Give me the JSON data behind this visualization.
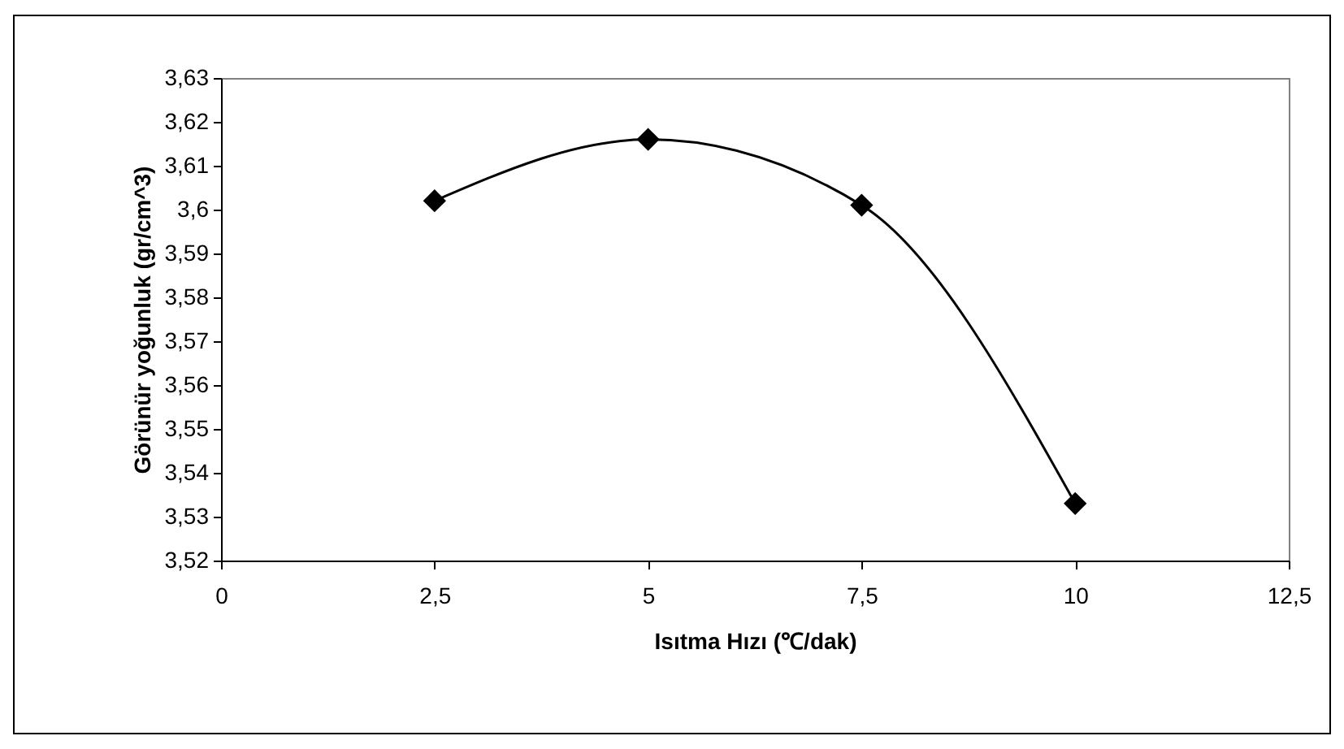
{
  "chart_data": {
    "type": "line",
    "xlabel": "Isıtma Hızı (℃/dak)",
    "ylabel": "Görünür yoğunluk (gr/cm^3)",
    "x": [
      2.5,
      5,
      7.5,
      10
    ],
    "series": [
      {
        "color": "#000000",
        "values": [
          3.602,
          3.616,
          3.601,
          3.533
        ]
      }
    ],
    "xlim": [
      0,
      12.5
    ],
    "xticks": [
      0,
      {
        "value": 2.5,
        "label": "2,5"
      },
      5,
      {
        "value": 7.5,
        "label": "7,5"
      },
      10,
      {
        "value": 12.5,
        "label": "12,5"
      }
    ],
    "ylim": [
      3.52,
      3.63
    ],
    "yticks": [
      {
        "value": 3.52,
        "label": "3,52"
      },
      {
        "value": 3.53,
        "label": "3,53"
      },
      {
        "value": 3.54,
        "label": "3,54"
      },
      {
        "value": 3.55,
        "label": "3,55"
      },
      {
        "value": 3.56,
        "label": "3,56"
      },
      {
        "value": 3.57,
        "label": "3,57"
      },
      {
        "value": 3.58,
        "label": "3,58"
      },
      {
        "value": 3.59,
        "label": "3,59"
      },
      {
        "value": 3.6,
        "label": "3,6"
      },
      {
        "value": 3.61,
        "label": "3,61"
      },
      {
        "value": 3.62,
        "label": "3,62"
      },
      {
        "value": 3.63,
        "label": "3,63"
      }
    ],
    "grid": false,
    "legend": false,
    "marker": "diamond",
    "line_style": "solid"
  }
}
